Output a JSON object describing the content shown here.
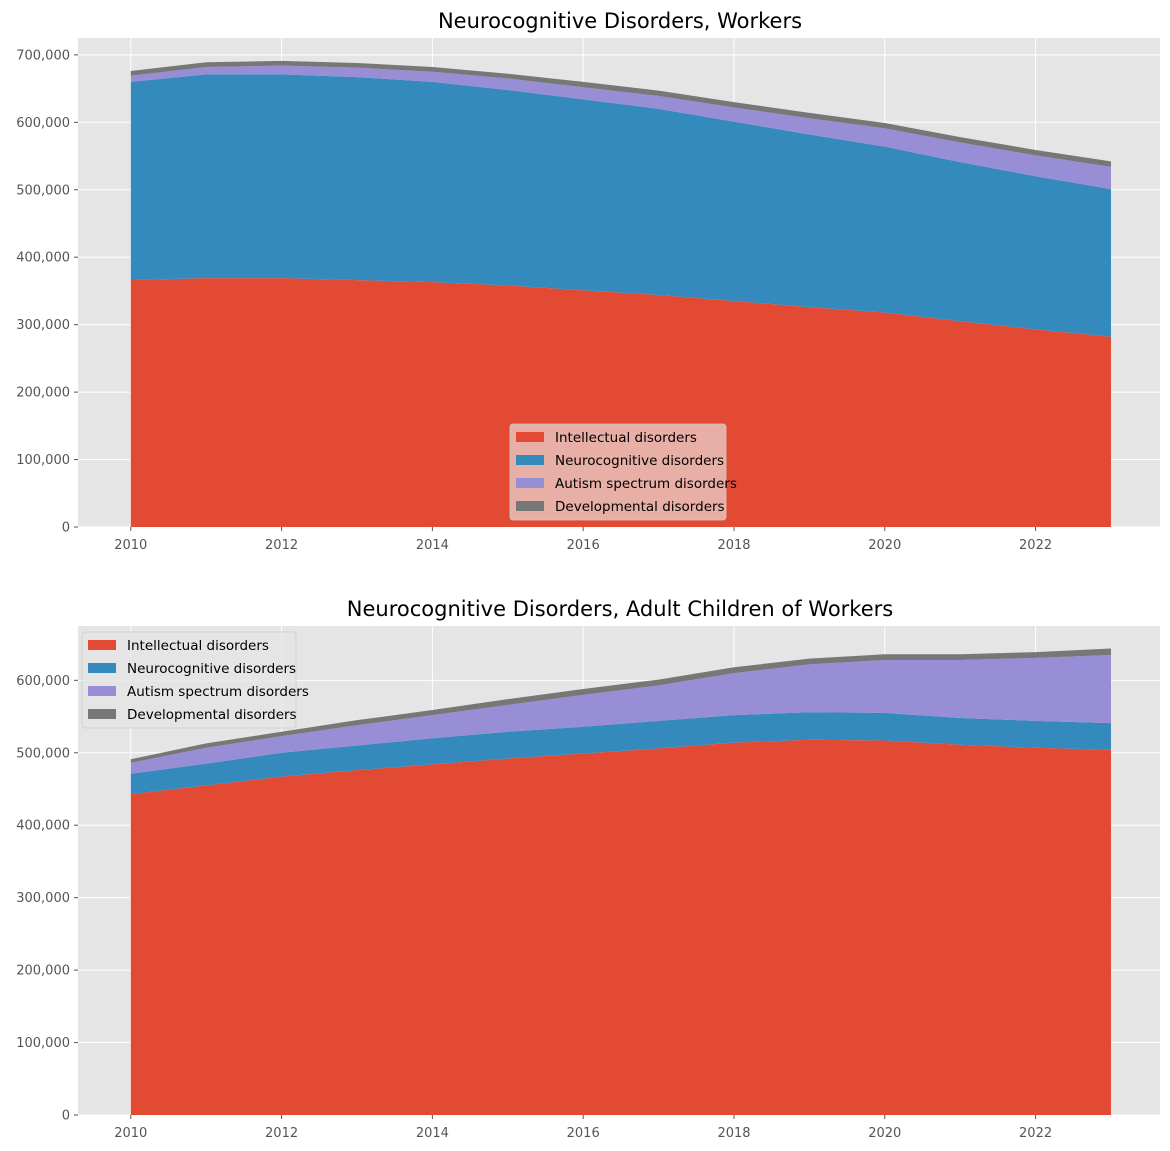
{
  "chart_data": [
    {
      "type": "area",
      "stacked": true,
      "title": "Neurocognitive Disorders, Workers",
      "xlabel": "",
      "ylabel": "",
      "x": [
        2010,
        2011,
        2012,
        2013,
        2014,
        2015,
        2016,
        2017,
        2018,
        2019,
        2020,
        2021,
        2022,
        2023
      ],
      "xticks": [
        "2010",
        "2012",
        "2014",
        "2016",
        "2018",
        "2020",
        "2022"
      ],
      "ylim": [
        0,
        725000
      ],
      "yticks": [
        "0",
        "100,000",
        "200,000",
        "300,000",
        "400,000",
        "500,000",
        "600,000",
        "700,000"
      ],
      "ytick_values": [
        0,
        100000,
        200000,
        300000,
        400000,
        500000,
        600000,
        700000
      ],
      "grid": true,
      "legend_position": "lower center",
      "series": [
        {
          "name": "Intellectual disorders",
          "color": "#E24A33",
          "values": [
            366000,
            369000,
            369000,
            366000,
            363000,
            358000,
            351000,
            344000,
            335000,
            326000,
            318000,
            305000,
            293000,
            282000
          ]
        },
        {
          "name": "Neurocognitive disorders",
          "color": "#348ABD",
          "values": [
            294000,
            302000,
            302000,
            301000,
            297000,
            290000,
            283000,
            276000,
            266000,
            256000,
            246000,
            236000,
            227000,
            219000
          ]
        },
        {
          "name": "Autism spectrum disorders",
          "color": "#988ED5",
          "values": [
            9000,
            11000,
            13000,
            14000,
            15000,
            17000,
            18000,
            19000,
            21000,
            24000,
            27000,
            29000,
            31000,
            33000
          ]
        },
        {
          "name": "Developmental disorders",
          "color": "#777777",
          "values": [
            7000,
            7000,
            7000,
            7000,
            7000,
            7000,
            8000,
            8000,
            8000,
            8000,
            8000,
            8000,
            8000,
            8000
          ]
        }
      ]
    },
    {
      "type": "area",
      "stacked": true,
      "title": "Neurocognitive Disorders, Adult Children of Workers",
      "xlabel": "",
      "ylabel": "",
      "x": [
        2010,
        2011,
        2012,
        2013,
        2014,
        2015,
        2016,
        2017,
        2018,
        2019,
        2020,
        2021,
        2022,
        2023
      ],
      "xticks": [
        "2010",
        "2012",
        "2014",
        "2016",
        "2018",
        "2020",
        "2022"
      ],
      "ylim": [
        0,
        675000
      ],
      "yticks": [
        "0",
        "100,000",
        "200,000",
        "300,000",
        "400,000",
        "500,000",
        "600,000"
      ],
      "ytick_values": [
        0,
        100000,
        200000,
        300000,
        400000,
        500000,
        600000
      ],
      "grid": true,
      "legend_position": "upper left",
      "series": [
        {
          "name": "Intellectual disorders",
          "color": "#E24A33",
          "values": [
            443000,
            455000,
            467000,
            476000,
            484000,
            492000,
            499000,
            506000,
            514000,
            518000,
            517000,
            511000,
            507000,
            504000
          ]
        },
        {
          "name": "Neurocognitive disorders",
          "color": "#348ABD",
          "values": [
            28000,
            30000,
            33000,
            34000,
            36000,
            37000,
            37000,
            38000,
            38000,
            38000,
            38000,
            37000,
            37000,
            37000
          ]
        },
        {
          "name": "Autism spectrum disorders",
          "color": "#988ED5",
          "values": [
            15000,
            22000,
            23000,
            28000,
            32000,
            37000,
            44000,
            49000,
            58000,
            66000,
            73000,
            80000,
            87000,
            94000
          ]
        },
        {
          "name": "Developmental disorders",
          "color": "#777777",
          "values": [
            5000,
            6000,
            6000,
            7000,
            7000,
            8000,
            8000,
            8000,
            8000,
            8000,
            8000,
            8000,
            8000,
            9000
          ]
        }
      ]
    }
  ]
}
